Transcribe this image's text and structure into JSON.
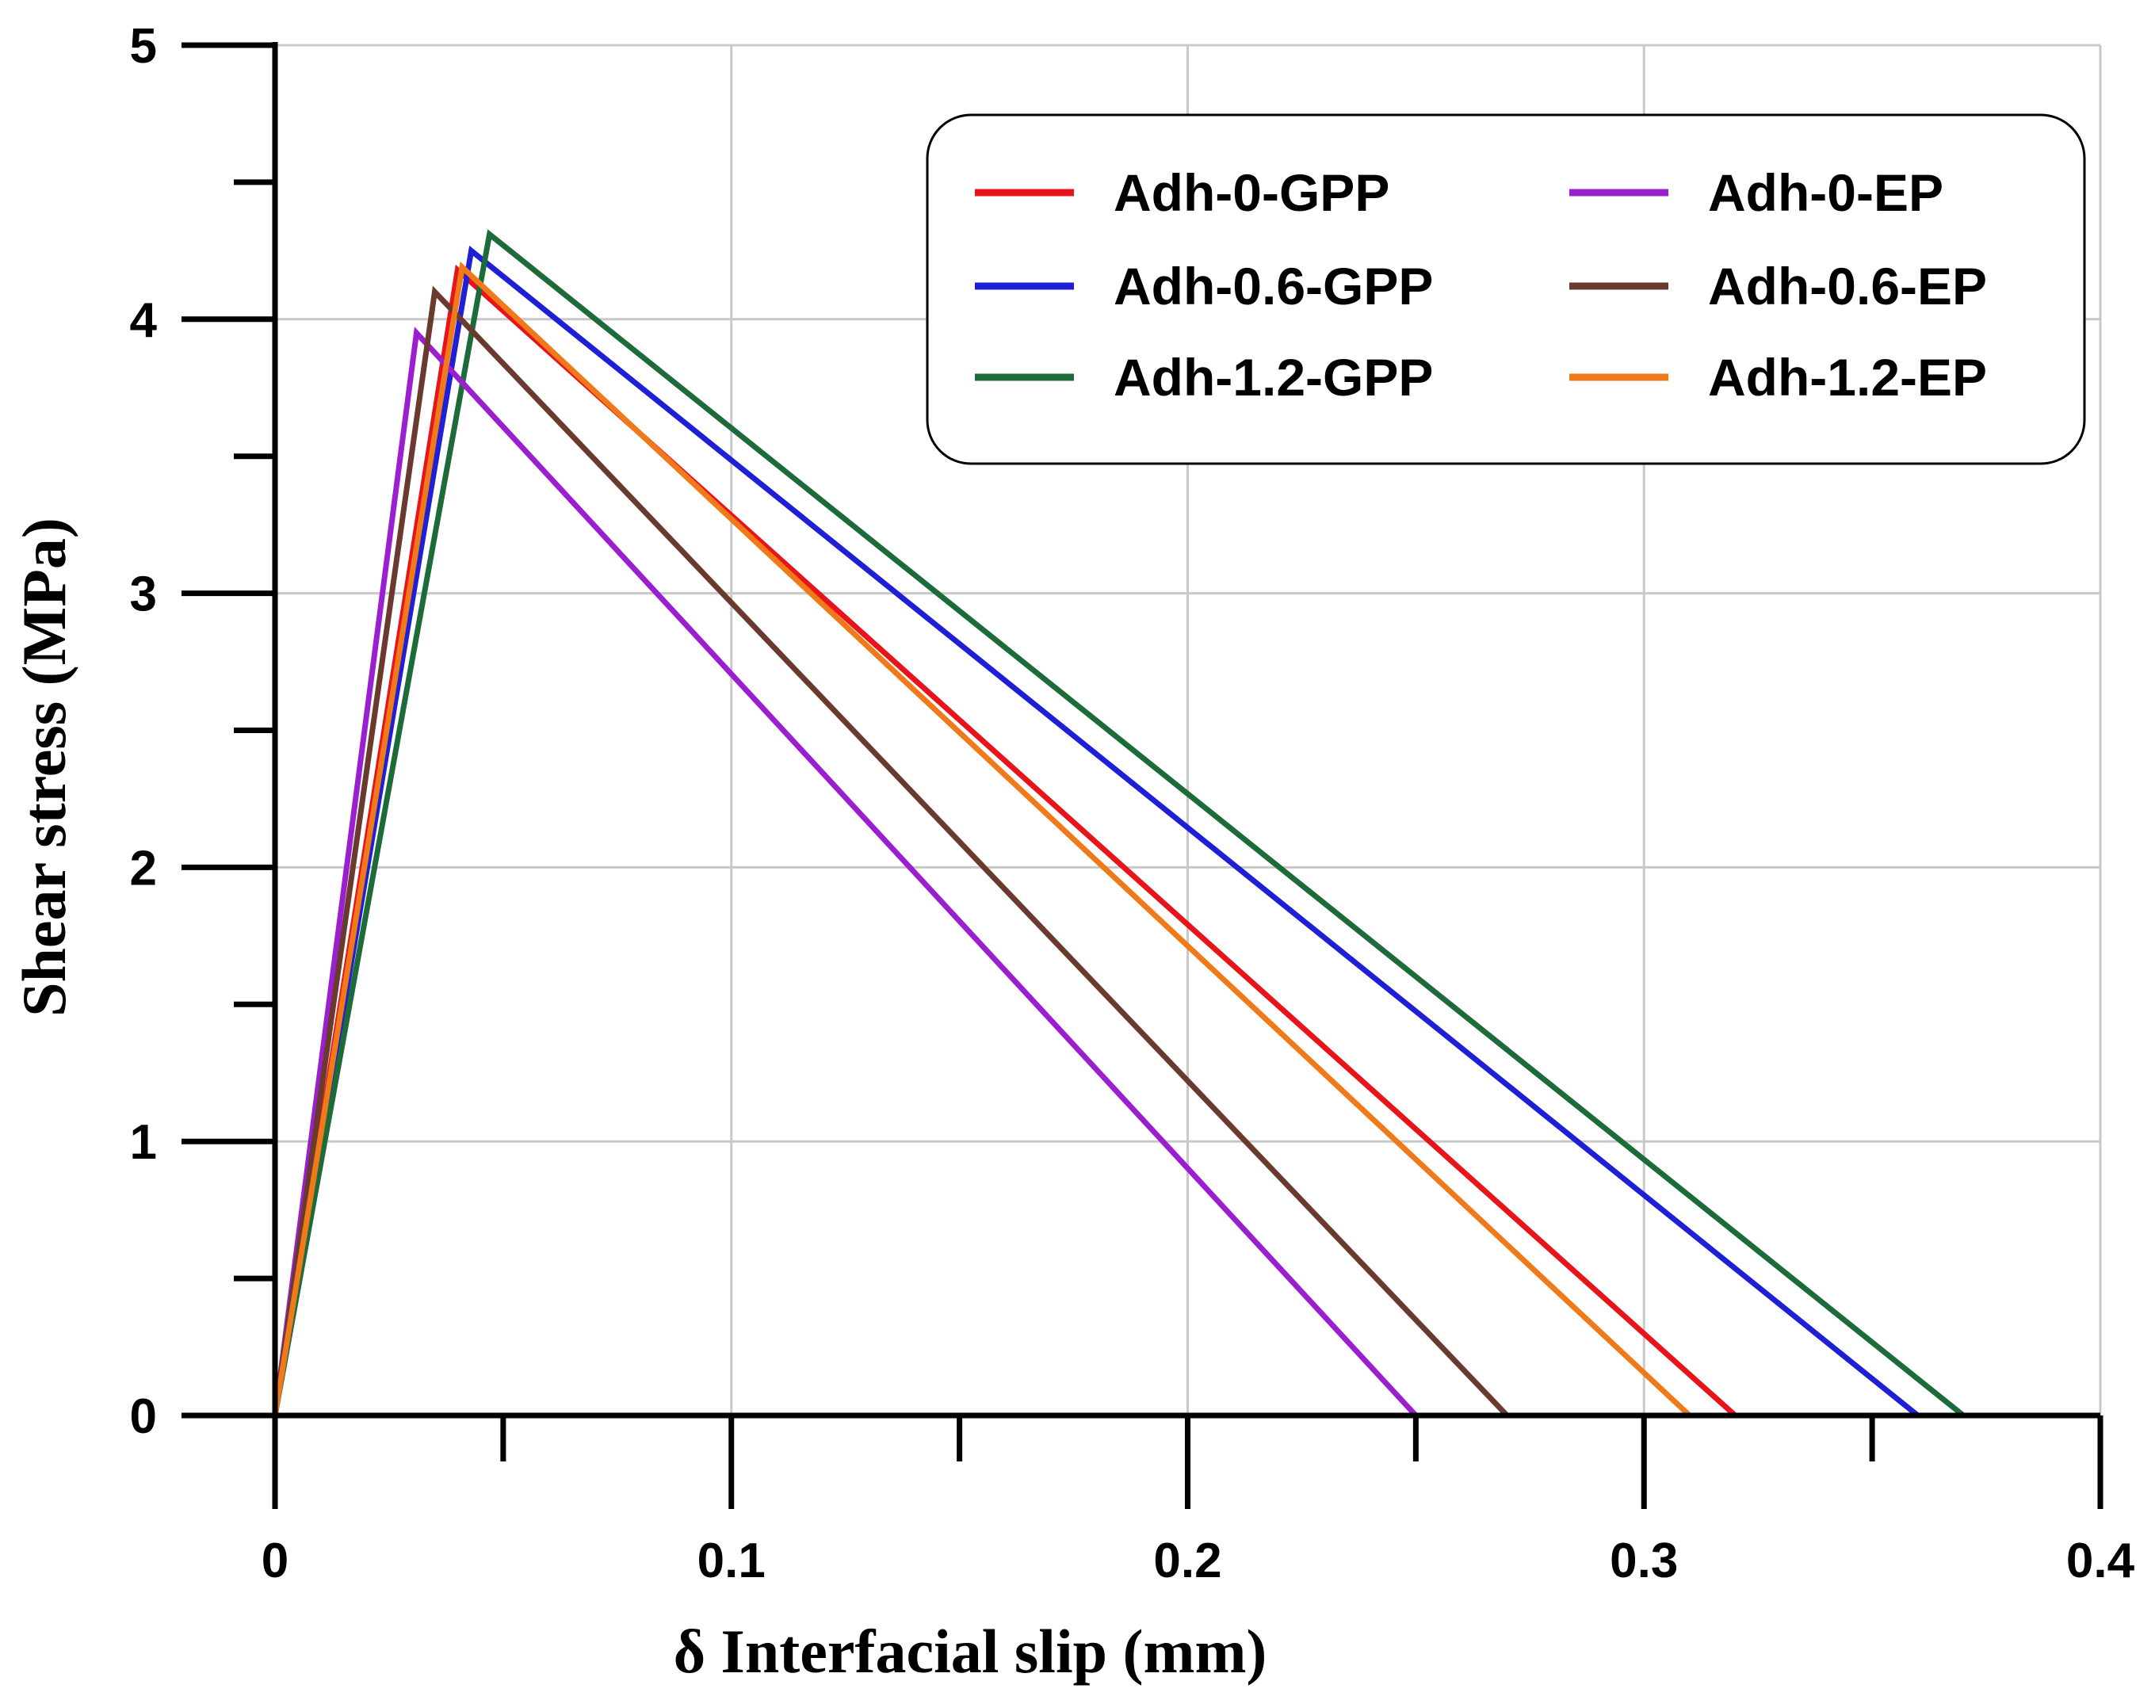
{
  "chart_data": {
    "type": "line",
    "title": "",
    "xlabel": "δ Interfacial slip (mm)",
    "ylabel": "Shear stress (MPa)",
    "xlim": [
      0,
      0.4
    ],
    "ylim": [
      0,
      5
    ],
    "xticks": [
      0,
      0.1,
      0.2,
      0.3,
      0.4
    ],
    "xtick_labels": [
      "0",
      "0.1",
      "0.2",
      "0.3",
      "0.4"
    ],
    "yticks": [
      0,
      1,
      2,
      3,
      4,
      5
    ],
    "ytick_labels": [
      "0",
      "1",
      "2",
      "3",
      "4",
      "5"
    ],
    "grid": true,
    "legend_position": "top-right",
    "series": [
      {
        "name": "Adh-0-GPP",
        "color": "#e8141c",
        "x": [
          0,
          0.04,
          0.32
        ],
        "y": [
          0,
          4.18,
          0
        ]
      },
      {
        "name": "Adh-0.6-GPP",
        "color": "#1f1fd6",
        "x": [
          0,
          0.043,
          0.36
        ],
        "y": [
          0,
          4.25,
          0
        ]
      },
      {
        "name": "Adh-1.2-GPP",
        "color": "#1e6b3a",
        "x": [
          0,
          0.047,
          0.37
        ],
        "y": [
          0,
          4.31,
          0
        ]
      },
      {
        "name": "Adh-0-EP",
        "color": "#9a1fd0",
        "x": [
          0,
          0.031,
          0.25
        ],
        "y": [
          0,
          3.95,
          0
        ]
      },
      {
        "name": "Adh-0.6-EP",
        "color": "#6b3a2e",
        "x": [
          0,
          0.035,
          0.27
        ],
        "y": [
          0,
          4.1,
          0
        ]
      },
      {
        "name": "Adh-1.2-EP",
        "color": "#f07a1a",
        "x": [
          0,
          0.041,
          0.31
        ],
        "y": [
          0,
          4.19,
          0
        ]
      }
    ]
  }
}
